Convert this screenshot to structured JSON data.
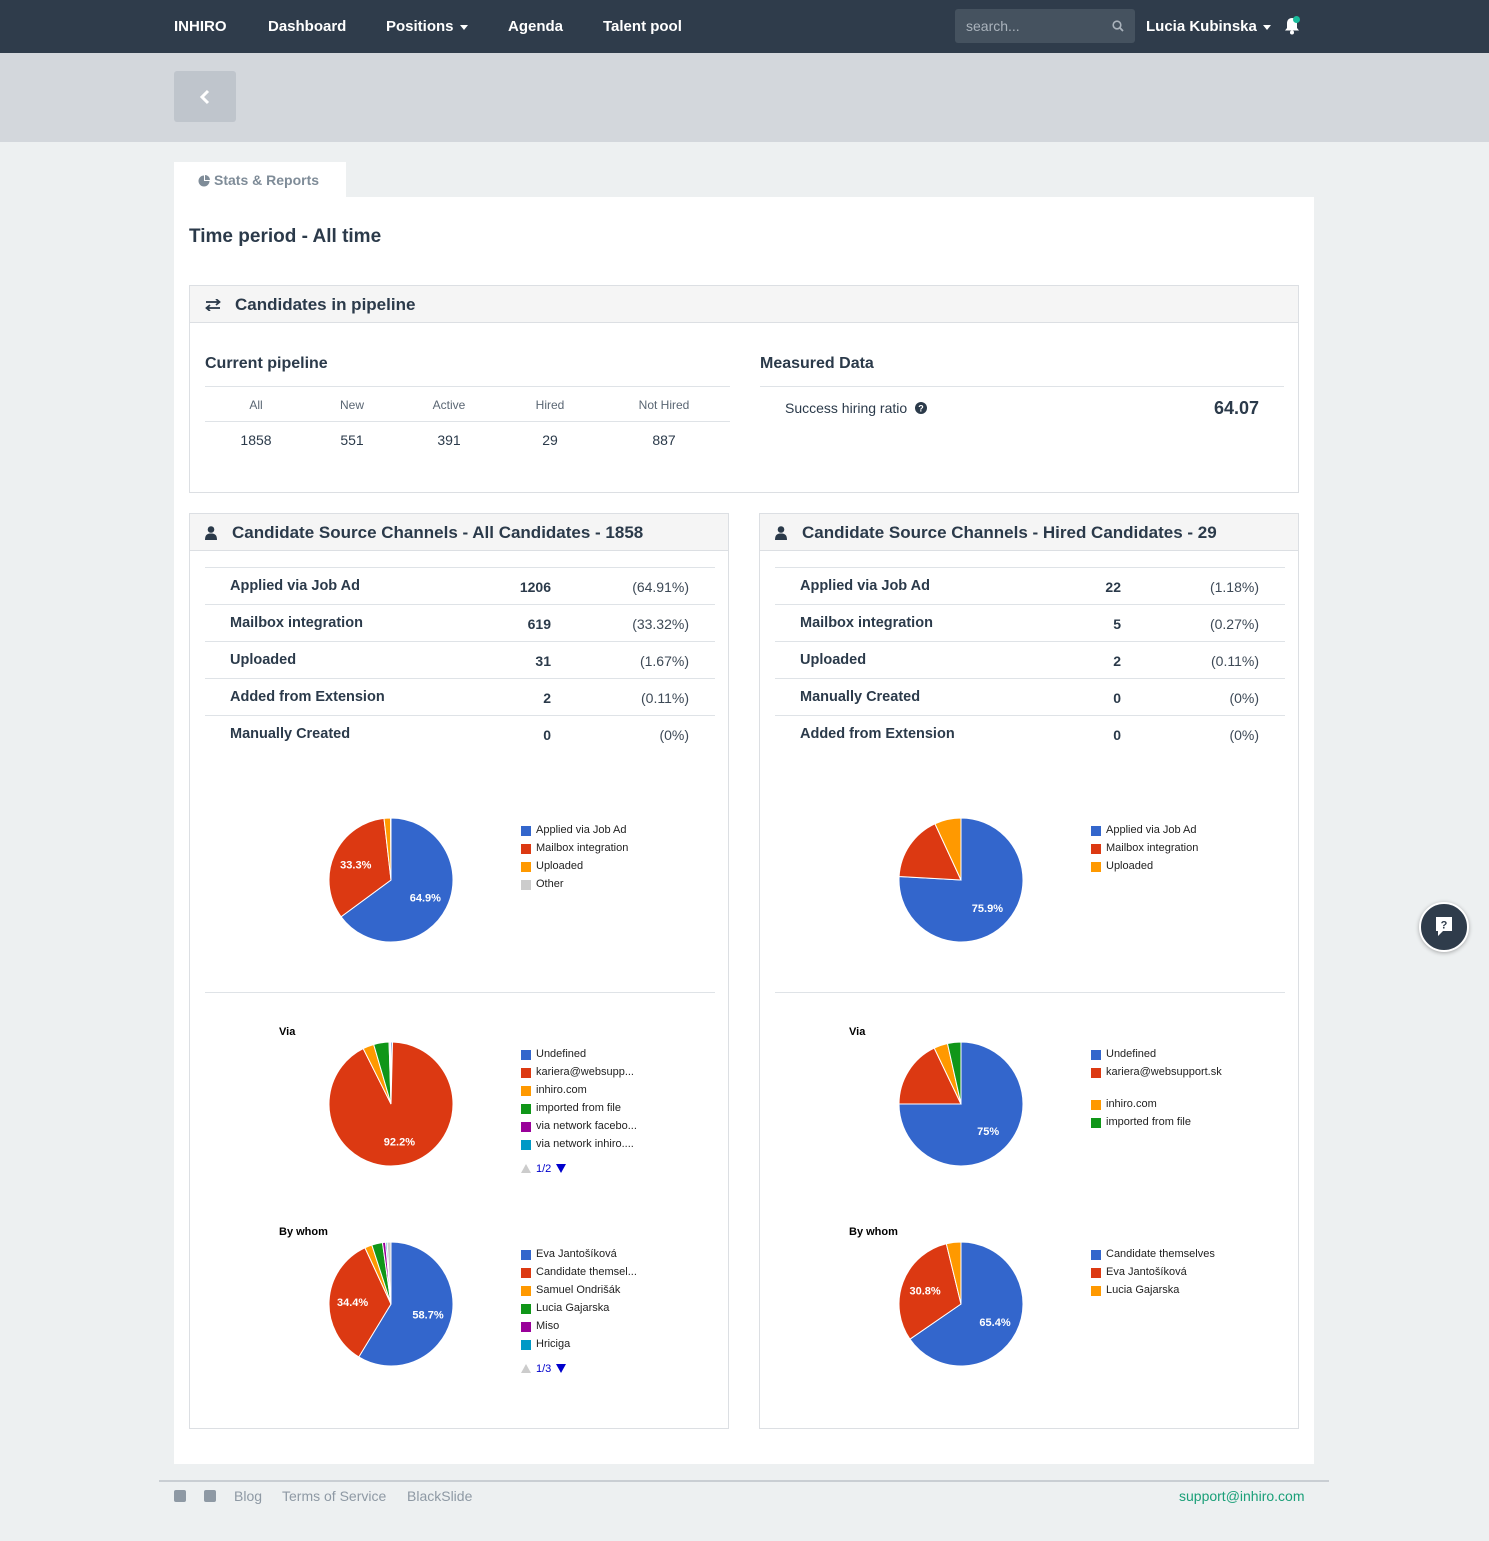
{
  "nav": {
    "brand": "INHIRO",
    "items": [
      "Dashboard",
      "Positions",
      "Agenda",
      "Talent pool"
    ],
    "search_placeholder": "search...",
    "user": "Lucia Kubinska"
  },
  "tab": {
    "label": "Stats & Reports"
  },
  "period": "Time period - All time",
  "pipeline": {
    "title": "Candidates in pipeline",
    "current_title": "Current pipeline",
    "columns": [
      "All",
      "New",
      "Active",
      "Hired",
      "Not Hired"
    ],
    "values": [
      "1858",
      "551",
      "391",
      "29",
      "887"
    ],
    "measured_title": "Measured Data",
    "ratio_label": "Success hiring ratio",
    "ratio_value": "64.07"
  },
  "all_sources": {
    "title": "Candidate Source Channels - All Candidates - 1858",
    "rows": [
      {
        "label": "Applied via Job Ad",
        "count": "1206",
        "pct": "(64.91%)"
      },
      {
        "label": "Mailbox integration",
        "count": "619",
        "pct": "(33.32%)"
      },
      {
        "label": "Uploaded",
        "count": "31",
        "pct": "(1.67%)"
      },
      {
        "label": "Added from Extension",
        "count": "2",
        "pct": "(0.11%)"
      },
      {
        "label": "Manually Created",
        "count": "0",
        "pct": "(0%)"
      }
    ]
  },
  "hired_sources": {
    "title": "Candidate Source Channels - Hired Candidates - 29",
    "rows": [
      {
        "label": "Applied via Job Ad",
        "count": "22",
        "pct": "(1.18%)"
      },
      {
        "label": "Mailbox integration",
        "count": "5",
        "pct": "(0.27%)"
      },
      {
        "label": "Uploaded",
        "count": "2",
        "pct": "(0.11%)"
      },
      {
        "label": "Manually Created",
        "count": "0",
        "pct": "(0%)"
      },
      {
        "label": "Added from Extension",
        "count": "0",
        "pct": "(0%)"
      }
    ]
  },
  "colors": {
    "blue": "#3366cc",
    "red": "#dc3912",
    "orange": "#ff9900",
    "green": "#109618",
    "purple": "#990099",
    "teal": "#0099c6",
    "gray": "#cccccc"
  },
  "chart_data": [
    {
      "type": "pie",
      "title": "",
      "labels": [
        "Applied via Job Ad",
        "Mailbox integration",
        "Uploaded",
        "Other"
      ],
      "values": [
        64.9,
        33.3,
        1.7,
        0.1
      ],
      "slice_labels": [
        "64.9%",
        "33.3%",
        "",
        ""
      ],
      "colors": [
        "#3366cc",
        "#dc3912",
        "#ff9900",
        "#cccccc"
      ]
    },
    {
      "type": "pie",
      "title": "Via",
      "labels": [
        "Undefined",
        "kariera@websupp...",
        "inhiro.com",
        "imported from file",
        "via network facebo...",
        "via network inhiro...."
      ],
      "values": [
        0.4,
        92.2,
        2.9,
        4.0,
        0.3,
        0.2
      ],
      "slice_labels": [
        "",
        "92.2%",
        "",
        "",
        "",
        ""
      ],
      "colors": [
        "#3366cc",
        "#dc3912",
        "#ff9900",
        "#109618",
        "#990099",
        "#0099c6"
      ],
      "pager": "1/2"
    },
    {
      "type": "pie",
      "title": "By whom",
      "labels": [
        "Eva Jantošíková",
        "Candidate themsel...",
        "Samuel Ondrišák",
        "Lucia Gajarska",
        "Miso",
        "Hriciga"
      ],
      "values": [
        58.7,
        34.4,
        1.9,
        2.8,
        0.8,
        0.4
      ],
      "extra_value": 1.0,
      "slice_labels": [
        "58.7%",
        "34.4%",
        "",
        "",
        "",
        ""
      ],
      "colors": [
        "#3366cc",
        "#dc3912",
        "#ff9900",
        "#109618",
        "#990099",
        "#0099c6"
      ],
      "pager": "1/3"
    },
    {
      "type": "pie",
      "title": "",
      "labels": [
        "Applied via Job Ad",
        "Mailbox integration",
        "Uploaded"
      ],
      "values": [
        75.9,
        17.2,
        6.9
      ],
      "slice_labels": [
        "75.9%",
        "",
        ""
      ],
      "colors": [
        "#3366cc",
        "#dc3912",
        "#ff9900"
      ]
    },
    {
      "type": "pie",
      "title": "Via",
      "labels": [
        "Undefined",
        "kariera@websupport.sk",
        "inhiro.com",
        "imported from file"
      ],
      "values": [
        75,
        17.9,
        3.6,
        3.5
      ],
      "slice_labels": [
        "75%",
        "",
        "",
        ""
      ],
      "colors": [
        "#3366cc",
        "#dc3912",
        "#ff9900",
        "#109618"
      ]
    },
    {
      "type": "pie",
      "title": "By whom",
      "labels": [
        "Candidate themselves",
        "Eva Jantošíková",
        "Lucia Gajarska"
      ],
      "values": [
        65.4,
        30.8,
        3.8
      ],
      "slice_labels": [
        "65.4%",
        "30.8%",
        ""
      ],
      "colors": [
        "#3366cc",
        "#dc3912",
        "#ff9900"
      ]
    }
  ],
  "footer": {
    "links": [
      "Blog",
      "Terms of Service",
      "BlackSlide"
    ],
    "support": "support@inhiro.com"
  }
}
